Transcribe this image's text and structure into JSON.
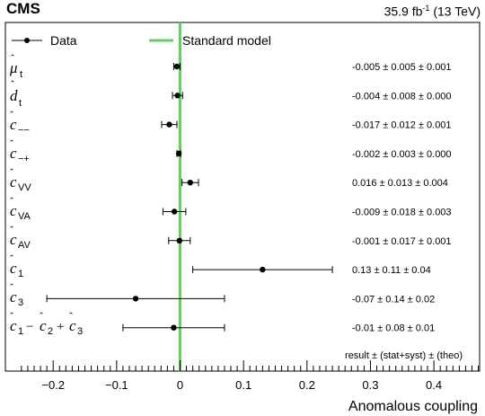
{
  "header": {
    "experiment": "CMS",
    "luminosity_base": "35.9 fb",
    "luminosity_exp": "-1",
    "energy": "(13 TeV)"
  },
  "legend": {
    "data_label": "Data",
    "sm_label": "Standard model"
  },
  "footnote": "result ± (stat+syst) ± (theo)",
  "chart_data": {
    "type": "scatter",
    "orientation": "horizontal-errorbar",
    "xlabel": "Anomalous coupling",
    "xlim": [
      -0.27,
      0.49
    ],
    "xticks": [
      -0.2,
      -0.1,
      0,
      0.1,
      0.2,
      0.3,
      0.4
    ],
    "xtick_labels": [
      "−0.2",
      "−0.1",
      "0",
      "0.1",
      "0.2",
      "0.3",
      "0.4"
    ],
    "reference_line": {
      "x": 0,
      "name": "Standard model",
      "color": "#5fd35f"
    },
    "series": [
      {
        "name": "Data",
        "color": "#000000",
        "points": [
          {
            "label": "mu_t",
            "value": -0.005,
            "err": 0.005,
            "theo": 0.001,
            "text": "-0.005 ± 0.005 ± 0.001"
          },
          {
            "label": "d_t",
            "value": -0.004,
            "err": 0.008,
            "theo": 0.0,
            "text": "-0.004 ± 0.008 ± 0.000"
          },
          {
            "label": "c_--",
            "value": -0.017,
            "err": 0.012,
            "theo": 0.001,
            "text": "-0.017 ± 0.012 ± 0.001"
          },
          {
            "label": "c_-+",
            "value": -0.002,
            "err": 0.003,
            "theo": 0.0,
            "text": "-0.002 ± 0.003 ± 0.000"
          },
          {
            "label": "c_VV",
            "value": 0.016,
            "err": 0.013,
            "theo": 0.004,
            "text": "0.016 ± 0.013 ± 0.004"
          },
          {
            "label": "c_VA",
            "value": -0.009,
            "err": 0.018,
            "theo": 0.003,
            "text": "-0.009 ± 0.018 ± 0.003"
          },
          {
            "label": "c_AV",
            "value": -0.001,
            "err": 0.017,
            "theo": 0.001,
            "text": "-0.001 ± 0.017 ± 0.001"
          },
          {
            "label": "c_1",
            "value": 0.13,
            "err": 0.11,
            "theo": 0.04,
            "text": "0.13 ± 0.11 ± 0.04"
          },
          {
            "label": "c_3",
            "value": -0.07,
            "err": 0.14,
            "theo": 0.02,
            "text": "-0.07 ± 0.14 ± 0.02"
          },
          {
            "label": "c_1 - c_2 + c_3",
            "value": -0.01,
            "err": 0.08,
            "theo": 0.01,
            "text": "-0.01 ± 0.08 ± 0.01"
          }
        ]
      }
    ]
  }
}
